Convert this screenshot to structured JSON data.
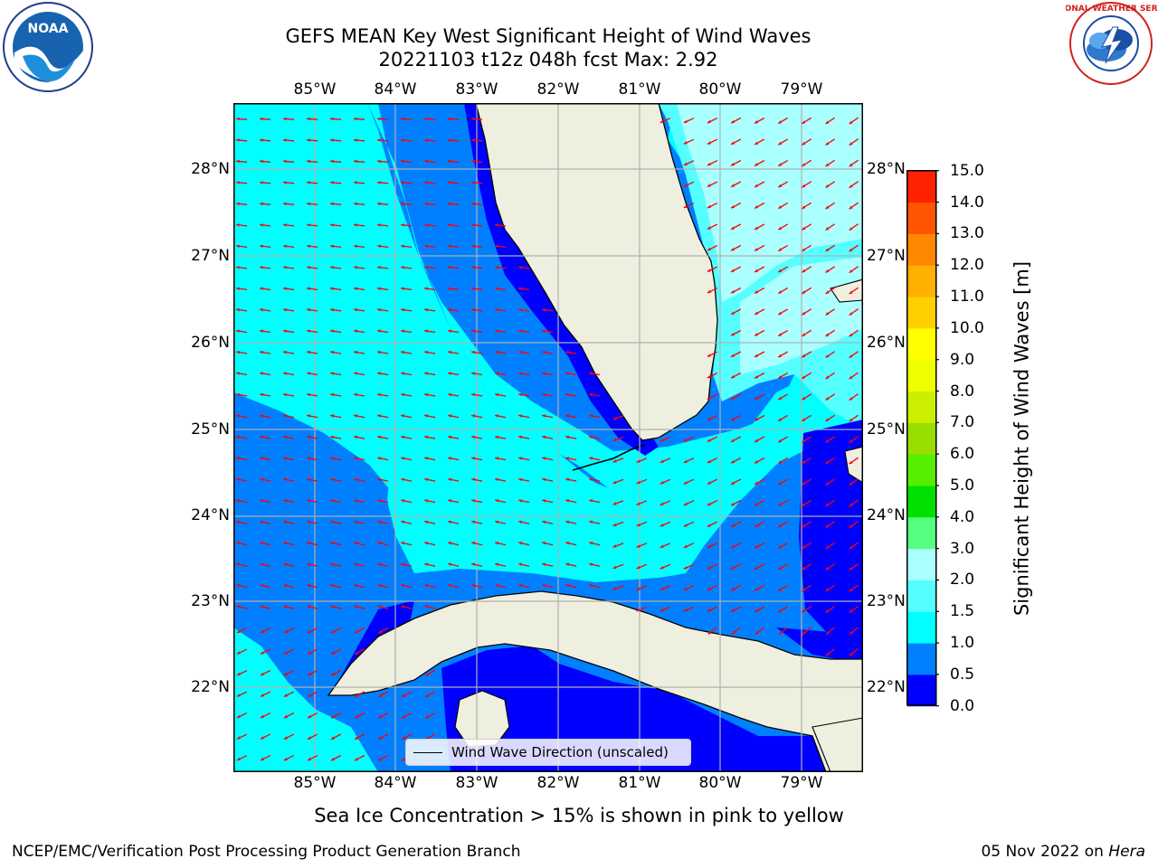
{
  "title": {
    "line1": "GEFS MEAN Key West Significant Height of Wind Waves",
    "line2": "20221103 t12z 048h fcst   Max: 2.92"
  },
  "axes": {
    "lon_ticks": [
      "85°W",
      "84°W",
      "83°W",
      "82°W",
      "81°W",
      "80°W",
      "79°W"
    ],
    "lat_ticks": [
      "28°N",
      "27°N",
      "26°N",
      "25°N",
      "24°N",
      "23°N",
      "22°N"
    ]
  },
  "colorbar": {
    "label": "Significant Height of Wind Waves [m]",
    "ticks": [
      "15.0",
      "14.0",
      "13.0",
      "12.0",
      "11.0",
      "10.0",
      "9.0",
      "8.0",
      "7.0",
      "6.0",
      "5.0",
      "4.0",
      "3.0",
      "2.0",
      "1.5",
      "1.0",
      "0.5",
      "0.0"
    ],
    "levels": [
      0,
      0.5,
      1.0,
      1.5,
      2.0,
      3.0,
      4.0,
      5.0,
      6.0,
      7.0,
      8.0,
      9.0,
      10.0,
      11.0,
      12.0,
      13.0,
      14.0,
      15.0
    ],
    "colors": [
      "#0000ff",
      "#0080ff",
      "#00ffff",
      "#55ffff",
      "#aaffff",
      "#55ff80",
      "#00e000",
      "#55ee00",
      "#99dd00",
      "#ccee00",
      "#eeff00",
      "#ffff00",
      "#ffd000",
      "#ffb000",
      "#ff8800",
      "#ff5500",
      "#ff2200"
    ]
  },
  "legend": {
    "label": "Wind Wave Direction (unscaled)"
  },
  "note": "Sea Ice Concentration > 15% is shown in pink to yellow",
  "footer": {
    "left": "NCEP/EMC/Verification Post Processing Product Generation Branch",
    "date": "05 Nov 2022 on",
    "machine": "Hera"
  },
  "logos": {
    "noaa_text": "NOAA",
    "nws_text": "NATIONAL WEATHER SERVICE"
  },
  "colors": {
    "land": "#efefdf",
    "arrows": "#ff0000",
    "band_0_05": "#0000ff",
    "band_05_1": "#0080ff",
    "band_1_15": "#00ffff",
    "band_15_2": "#55ffff",
    "band_2_3": "#aaffff"
  }
}
